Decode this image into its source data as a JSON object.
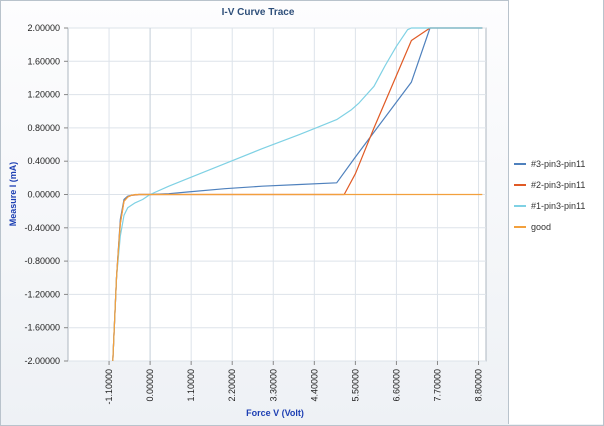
{
  "chart_data": {
    "type": "line",
    "title": "I-V Curve Trace",
    "xlabel": "Force V (Volt)",
    "ylabel": "Measure I (mA)",
    "xlim": [
      -2.2,
      9.0
    ],
    "ylim": [
      -2.0,
      2.0
    ],
    "x_ticks": [
      -1.1,
      0.0,
      1.1,
      2.2,
      3.3,
      4.4,
      5.5,
      6.6,
      7.7,
      8.8
    ],
    "x_tick_labels": [
      "-1.10000",
      "0.00000",
      "1.10000",
      "2.20000",
      "3.30000",
      "4.40000",
      "5.50000",
      "6.60000",
      "7.70000",
      "8.80000"
    ],
    "y_ticks": [
      2.0,
      1.6,
      1.2,
      0.8,
      0.4,
      0.0,
      -0.4,
      -0.8,
      -1.2,
      -1.6,
      -2.0
    ],
    "y_tick_labels": [
      "2.00000",
      "1.60000",
      "1.20000",
      "0.80000",
      "0.40000",
      "0.00000",
      "-0.40000",
      "-0.80000",
      "-1.20000",
      "-1.60000",
      "-2.00000"
    ],
    "grid": true,
    "legend_position": "right",
    "series": [
      {
        "name": "#3-pin3-pin11",
        "color": "#4f81bd",
        "x": [
          -1.0,
          -0.9,
          -0.8,
          -0.7,
          -0.6,
          -0.5,
          -0.4,
          -0.3,
          -0.2,
          0.0,
          0.5,
          1.0,
          2.0,
          3.0,
          4.0,
          5.0,
          5.5,
          6.0,
          7.0,
          7.5,
          8.9
        ],
        "y": [
          -2.0,
          -1.0,
          -0.3,
          -0.06,
          -0.02,
          -0.01,
          -0.005,
          0.0,
          0.0,
          0.0,
          0.01,
          0.03,
          0.07,
          0.1,
          0.12,
          0.14,
          0.45,
          0.75,
          1.35,
          2.0,
          2.0
        ]
      },
      {
        "name": "#2-pin3-pin11",
        "color": "#e05a25",
        "x": [
          -1.0,
          -0.9,
          -0.8,
          -0.7,
          -0.6,
          -0.5,
          -0.4,
          -0.3,
          0.0,
          2.0,
          4.0,
          5.2,
          5.5,
          6.0,
          7.0,
          7.5,
          8.9
        ],
        "y": [
          -2.0,
          -1.0,
          -0.35,
          -0.08,
          -0.03,
          -0.01,
          -0.005,
          0.0,
          0.0,
          0.0,
          0.0,
          0.0,
          0.25,
          0.8,
          1.85,
          2.0,
          2.0
        ]
      },
      {
        "name": "#1-pin3-pin11",
        "color": "#7fd1e4",
        "x": [
          -1.0,
          -0.9,
          -0.8,
          -0.7,
          -0.6,
          -0.5,
          -0.4,
          -0.2,
          0.0,
          0.5,
          1.0,
          2.0,
          3.0,
          4.0,
          5.0,
          5.4,
          5.6,
          6.0,
          6.3,
          6.6,
          6.9,
          7.0,
          8.9
        ],
        "y": [
          -2.0,
          -1.0,
          -0.5,
          -0.25,
          -0.16,
          -0.13,
          -0.1,
          -0.06,
          0.0,
          0.1,
          0.19,
          0.37,
          0.55,
          0.72,
          0.9,
          1.02,
          1.1,
          1.3,
          1.55,
          1.78,
          1.98,
          2.0,
          2.0
        ]
      },
      {
        "name": "good",
        "color": "#f2a03d",
        "x": [
          -1.0,
          -0.9,
          -0.8,
          -0.7,
          -0.6,
          -0.5,
          -0.4,
          0.0,
          2.0,
          4.0,
          6.0,
          8.9
        ],
        "y": [
          -2.0,
          -1.0,
          -0.35,
          -0.08,
          -0.03,
          -0.01,
          0.0,
          0.0,
          0.0,
          0.0,
          0.0,
          0.0
        ]
      }
    ]
  }
}
